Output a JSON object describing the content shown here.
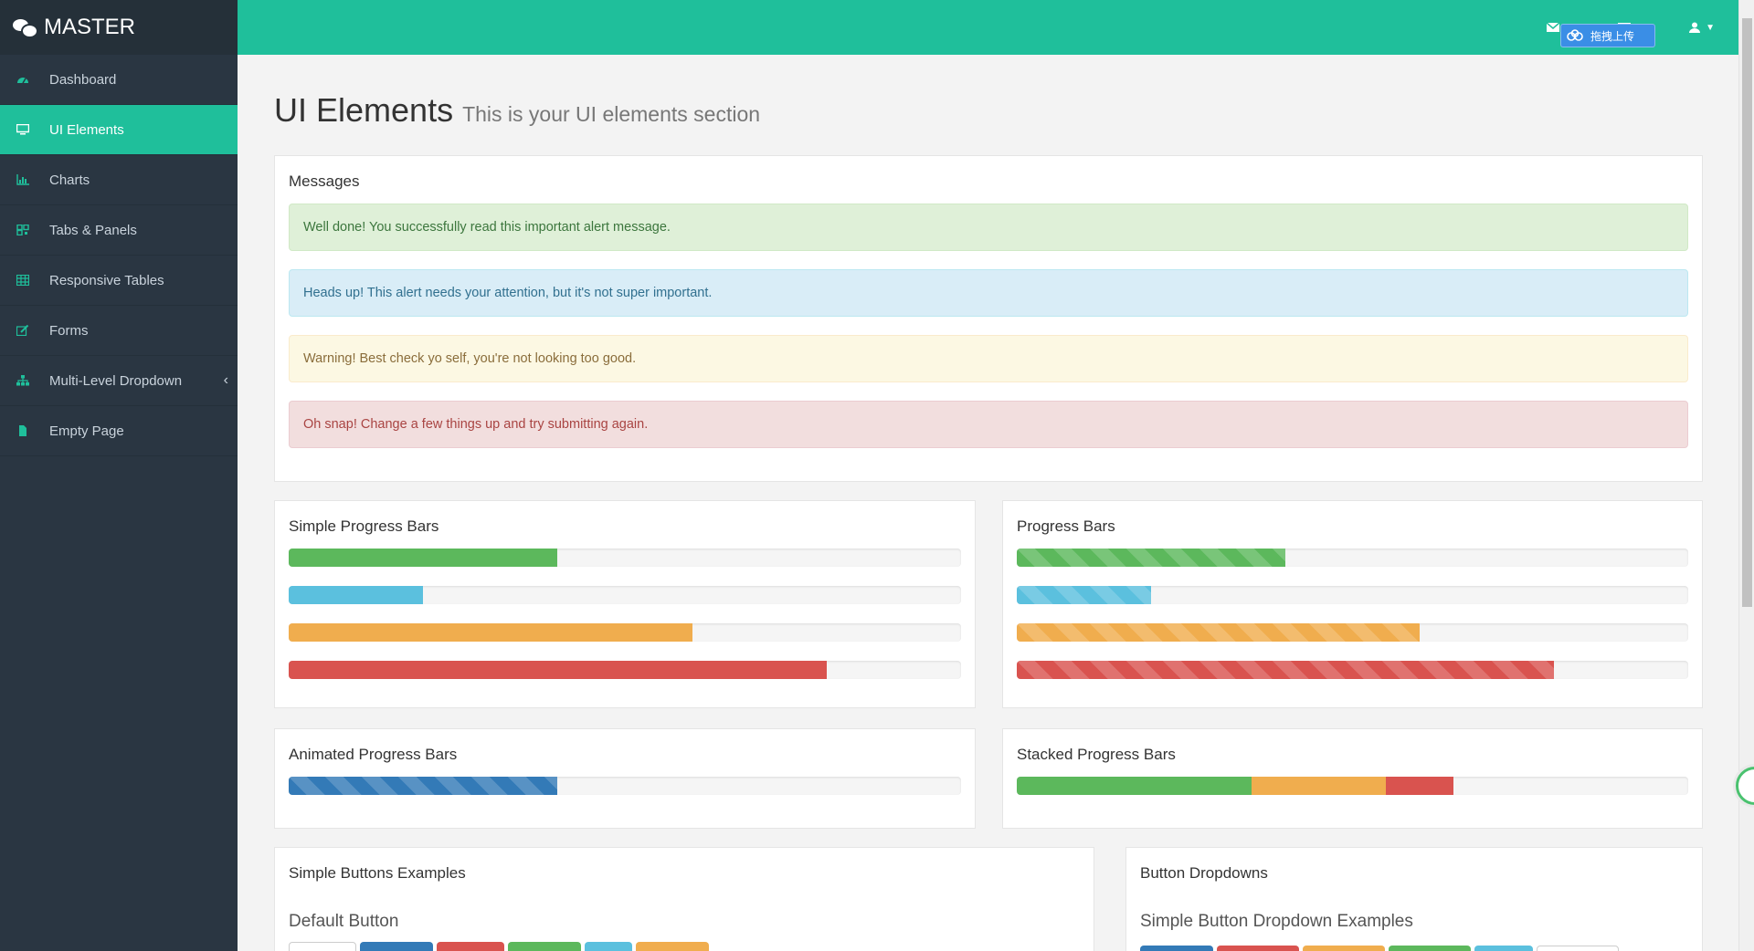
{
  "brand": {
    "name": "MASTER"
  },
  "sidebar": {
    "items": [
      {
        "label": "Dashboard",
        "icon": "dashboard-icon"
      },
      {
        "label": "UI Elements",
        "icon": "desktop-icon"
      },
      {
        "label": "Charts",
        "icon": "bar-chart-icon"
      },
      {
        "label": "Tabs & Panels",
        "icon": "qrcode-icon"
      },
      {
        "label": "Responsive Tables",
        "icon": "table-icon"
      },
      {
        "label": "Forms",
        "icon": "edit-icon"
      },
      {
        "label": "Multi-Level Dropdown",
        "icon": "sitemap-icon"
      },
      {
        "label": "Empty Page",
        "icon": "file-icon"
      }
    ]
  },
  "topbar": {
    "upload_label": "拖拽上传"
  },
  "page": {
    "title": "UI Elements",
    "subtitle": "This is your UI elements section"
  },
  "messages": {
    "heading": "Messages",
    "alerts": [
      "Well done! You successfully read this important alert message.",
      "Heads up! This alert needs your attention, but it's not super important.",
      "Warning! Best check yo self, you're not looking too good.",
      "Oh snap! Change a few things up and try submitting again."
    ]
  },
  "panels": {
    "simple_progress": "Simple Progress Bars",
    "progress": "Progress Bars",
    "animated": "Animated Progress Bars",
    "stacked": "Stacked Progress Bars",
    "simple_buttons": "Simple Buttons Examples",
    "button_dropdowns": "Button Dropdowns"
  },
  "progress_values": {
    "simple": [
      40,
      20,
      60,
      80
    ],
    "striped": [
      40,
      20,
      60,
      80
    ],
    "animated": 40,
    "stacked": [
      35,
      20,
      10
    ]
  },
  "buttons": {
    "default_heading": "Default Button",
    "dropdown_heading": "Simple Button Dropdown Examples"
  },
  "colors": {
    "accent": "#1fbf9b",
    "success": "#5cb85c",
    "info": "#5bc0de",
    "warning": "#f0ad4e",
    "danger": "#d9534f",
    "primary": "#337ab7"
  }
}
